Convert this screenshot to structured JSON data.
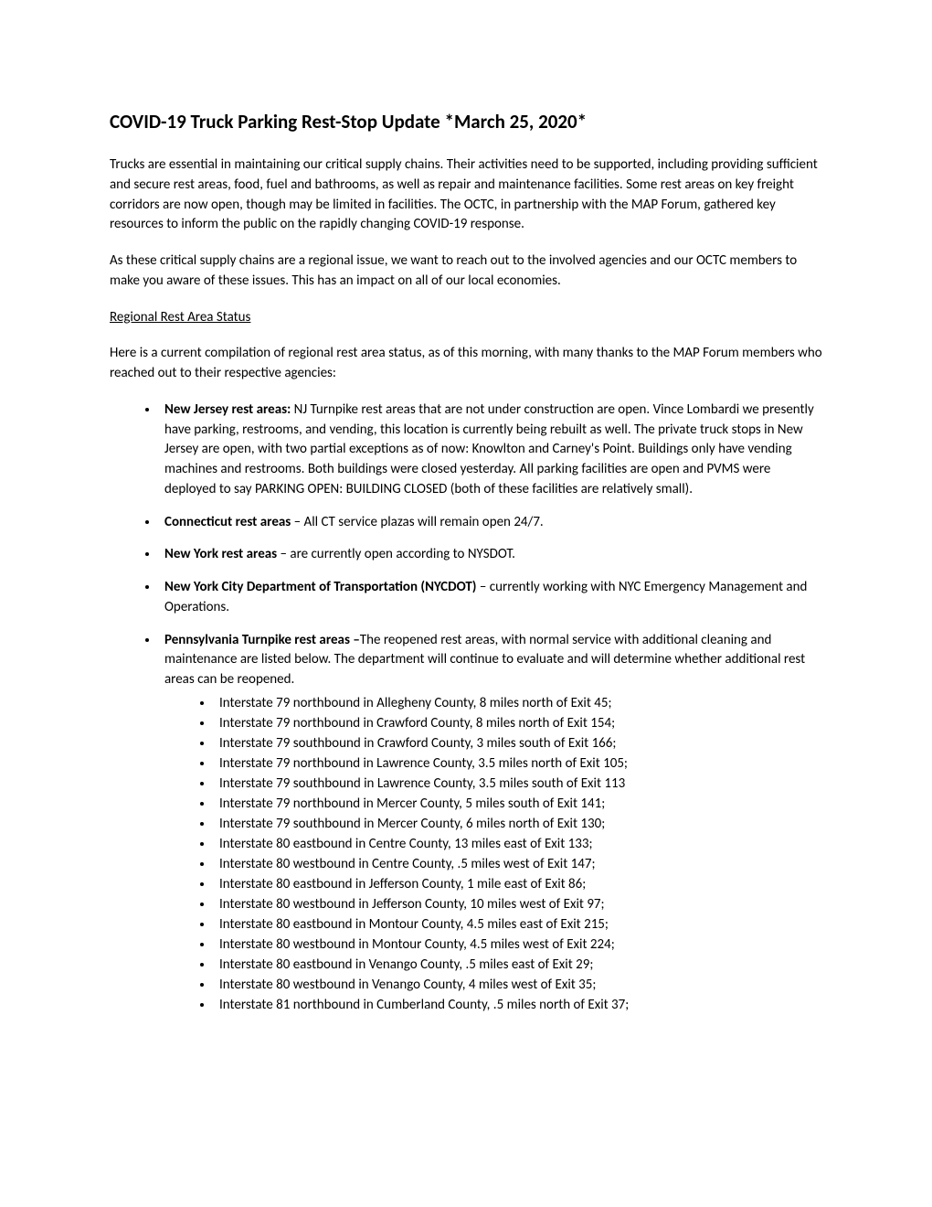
{
  "title": "COVID-19 Truck Parking Rest-Stop Update *March 25, 2020*",
  "intro_p1": "Trucks are essential in maintaining our critical supply chains.  Their activities need to be supported, including providing sufficient and secure rest areas, food, fuel and bathrooms, as well as repair and maintenance facilities.  Some rest areas on key freight corridors are now open, though may be limited in facilities.  The OCTC, in partnership with the MAP Forum, gathered key resources to inform the public on the rapidly changing COVID-19 response.",
  "intro_p2": "As these critical supply chains are a regional issue, we want to reach out to the involved agencies and our OCTC members to make you aware of these issues.  This has an impact on all of our local economies.",
  "section_heading": "Regional Rest Area Status",
  "section_intro": "Here is a current compilation of regional rest area status, as of this morning, with many thanks to the MAP Forum members who reached out to their respective agencies:",
  "bullets": [
    {
      "bold": "New Jersey rest areas:",
      "text": " NJ Turnpike rest areas that are not under construction are open. Vince Lombardi we presently have parking, restrooms, and vending, this location is currently being rebuilt as well.  The private truck stops in New Jersey are open, with two partial exceptions as of now:  Knowlton and Carney's Point.  Buildings only have vending machines and restrooms.  Both buildings were closed yesterday.  All parking facilities are open and PVMS were deployed to say PARKING OPEN:  BUILDING CLOSED (both of these facilities are relatively small)."
    },
    {
      "bold": "Connecticut rest areas",
      "text": " – All CT service plazas will remain open 24/7."
    },
    {
      "bold": "New York rest areas",
      "text": " – are currently open according to NYSDOT."
    },
    {
      "bold": "New York City Department of Transportation (NYCDOT)",
      "text": " – currently working with NYC Emergency Management and Operations."
    },
    {
      "bold": "Pennsylvania Turnpike rest areas –",
      "text": "The reopened rest areas, with normal service with additional cleaning and maintenance are listed below.  The department will continue to evaluate and will determine whether additional rest areas can be reopened.",
      "sub": [
        "Interstate 79 northbound in Allegheny County, 8 miles north of Exit 45;",
        "Interstate 79 northbound in Crawford County, 8 miles north of Exit 154;",
        "Interstate 79 southbound in Crawford County, 3 miles south of Exit 166;",
        "Interstate 79 northbound in Lawrence County, 3.5 miles north of Exit 105;",
        "Interstate 79 southbound in Lawrence County, 3.5 miles south of Exit 113",
        "Interstate 79 northbound in Mercer County, 5 miles south of Exit 141;",
        "Interstate 79 southbound in Mercer County, 6 miles north of Exit 130;",
        "Interstate 80 eastbound in Centre County, 13 miles east of Exit 133;",
        "Interstate 80 westbound in Centre County, .5 miles west of Exit 147;",
        "Interstate 80 eastbound in Jefferson County, 1 mile east of Exit 86;",
        "Interstate 80 westbound in Jefferson County, 10 miles west of Exit 97;",
        "Interstate 80 eastbound in Montour County, 4.5 miles east of Exit 215;",
        "Interstate 80 westbound in Montour County, 4.5 miles west of Exit 224;",
        "Interstate 80 eastbound in Venango County, .5 miles east of Exit 29;",
        "Interstate 80 westbound in Venango County, 4 miles west of Exit 35;",
        "Interstate 81 northbound in Cumberland County, .5 miles north of Exit 37;"
      ]
    }
  ]
}
